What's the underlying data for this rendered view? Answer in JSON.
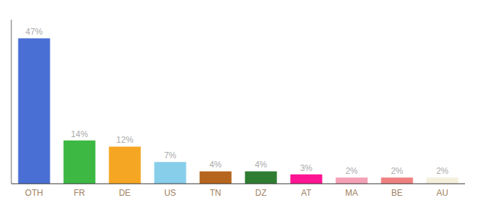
{
  "chart_data": {
    "type": "bar",
    "categories": [
      "OTH",
      "FR",
      "DE",
      "US",
      "TN",
      "DZ",
      "AT",
      "MA",
      "BE",
      "AU"
    ],
    "values": [
      47,
      14,
      12,
      7,
      4,
      4,
      3,
      2,
      2,
      2
    ],
    "value_labels": [
      "47%",
      "14%",
      "12%",
      "7%",
      "4%",
      "4%",
      "3%",
      "2%",
      "2%",
      "2%"
    ],
    "colors": [
      "#4a6fd4",
      "#3cb843",
      "#f5a623",
      "#87ceeb",
      "#b5651d",
      "#2e7d32",
      "#ff1493",
      "#f4a0b5",
      "#f08080",
      "#f5f0dc"
    ],
    "ylim": [
      0,
      53
    ],
    "data_labels": true,
    "tick_labels": "x"
  }
}
